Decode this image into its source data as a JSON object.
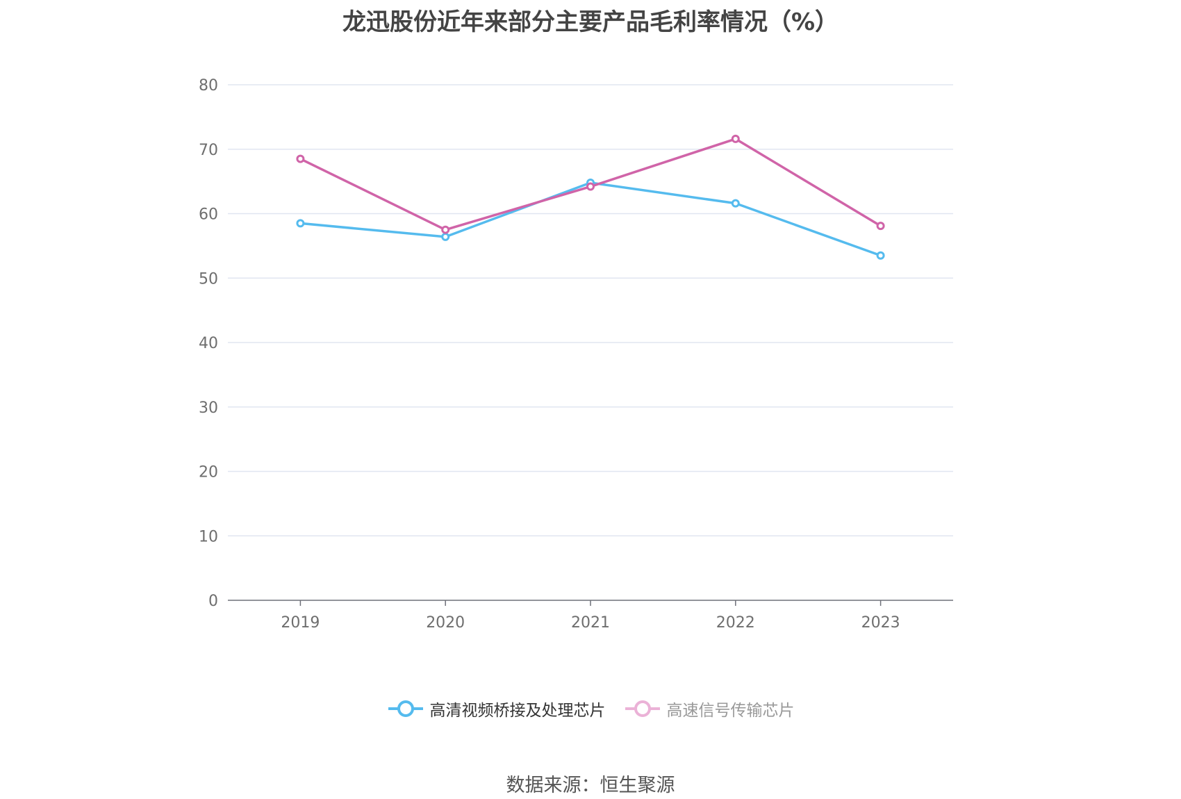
{
  "title": "龙迅股份近年来部分主要产品毛利率情况（%）",
  "source": "数据来源：恒生聚源",
  "chart_data": {
    "type": "line",
    "title": "龙迅股份近年来部分主要产品毛利率情况（%）",
    "x": [
      "2019",
      "2020",
      "2021",
      "2022",
      "2023"
    ],
    "ylim": [
      0,
      80
    ],
    "yticks": [
      "0",
      "10",
      "20",
      "30",
      "40",
      "50",
      "60",
      "70",
      "80"
    ],
    "grid": true,
    "legend_position": "bottom",
    "series": [
      {
        "name": "高清视频桥接及处理芯片",
        "color": "#55bbee",
        "values": [
          58.5,
          56.4,
          64.8,
          61.6,
          53.5
        ]
      },
      {
        "name": "高速信号传输芯片",
        "color": "#d064a8",
        "legend_color": "#ebb2d7",
        "values": [
          68.5,
          57.5,
          64.2,
          71.6,
          58.1
        ]
      }
    ]
  },
  "legend": [
    {
      "label": "高清视频桥接及处理芯片",
      "text_color": "#333333"
    },
    {
      "label": "高速信号传输芯片",
      "text_color": "#999999"
    }
  ]
}
